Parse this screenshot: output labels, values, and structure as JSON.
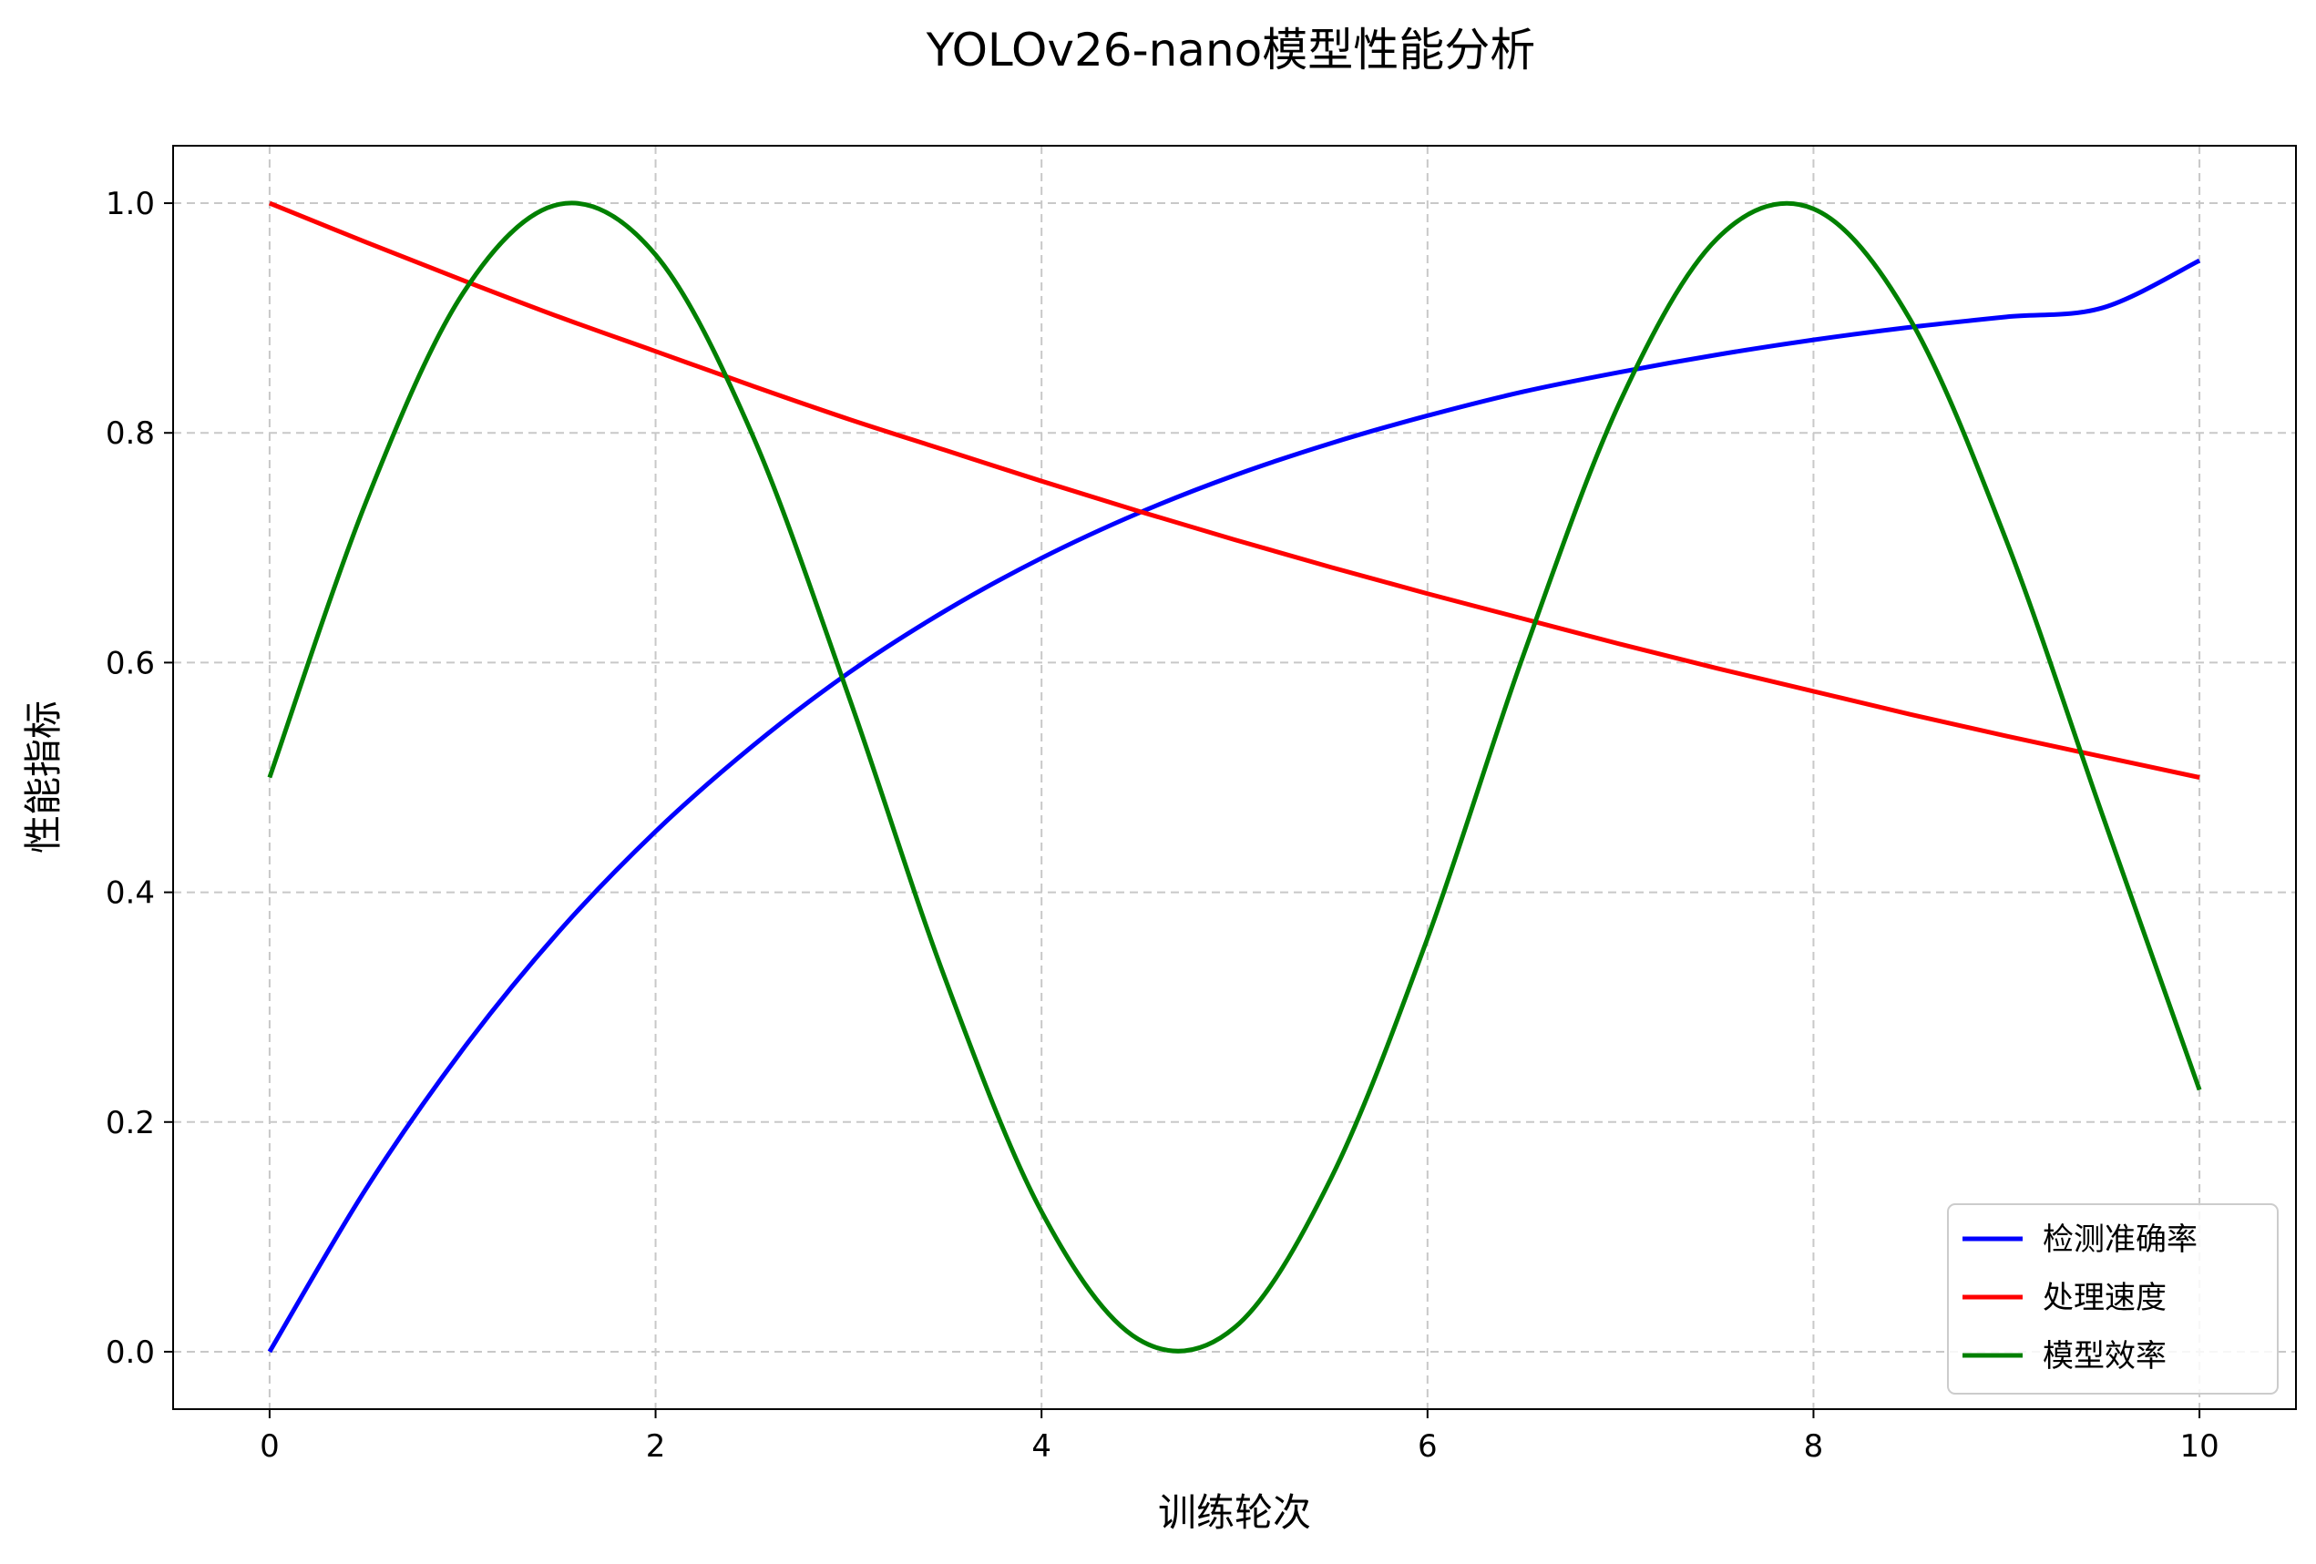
{
  "chart_data": {
    "type": "line",
    "title": "YOLOv26-nano模型性能分析",
    "xlabel": "训练轮次",
    "ylabel": "性能指标",
    "xlim": [
      -0.5,
      10.5
    ],
    "ylim": [
      -0.05,
      1.05
    ],
    "xticks": [
      0,
      2,
      4,
      6,
      8,
      10
    ],
    "xtick_labels": [
      "0",
      "2",
      "4",
      "6",
      "8",
      "10"
    ],
    "yticks": [
      0.0,
      0.2,
      0.4,
      0.6,
      0.8,
      1.0
    ],
    "ytick_labels": [
      "0.0",
      "0.2",
      "0.4",
      "0.6",
      "0.8",
      "1.0"
    ],
    "grid": true,
    "legend_position": "bottom-right",
    "x": [
      0,
      0.5,
      1,
      1.5,
      2,
      2.5,
      3,
      3.5,
      4,
      4.5,
      5,
      5.5,
      6,
      6.5,
      7,
      7.5,
      8,
      8.5,
      9,
      9.5,
      10
    ],
    "series": [
      {
        "name": "检测准确率",
        "color": "#0000ff",
        "values": [
          0.0,
          0.142,
          0.263,
          0.366,
          0.453,
          0.527,
          0.591,
          0.645,
          0.691,
          0.73,
          0.763,
          0.791,
          0.815,
          0.836,
          0.853,
          0.868,
          0.881,
          0.892,
          0.901,
          0.909,
          0.95
        ]
      },
      {
        "name": "处理速度",
        "color": "#ff0000",
        "values": [
          1.0,
          0.966,
          0.933,
          0.901,
          0.871,
          0.841,
          0.812,
          0.785,
          0.758,
          0.732,
          0.707,
          0.683,
          0.66,
          0.638,
          0.616,
          0.595,
          0.575,
          0.555,
          0.536,
          0.518,
          0.5
        ]
      },
      {
        "name": "模型效率",
        "color": "#008000",
        "values": [
          0.5,
          0.74,
          0.921,
          0.999,
          0.955,
          0.799,
          0.571,
          0.325,
          0.122,
          0.011,
          0.021,
          0.151,
          0.36,
          0.608,
          0.828,
          0.969,
          0.995,
          0.899,
          0.706,
          0.466,
          0.228
        ]
      }
    ]
  }
}
